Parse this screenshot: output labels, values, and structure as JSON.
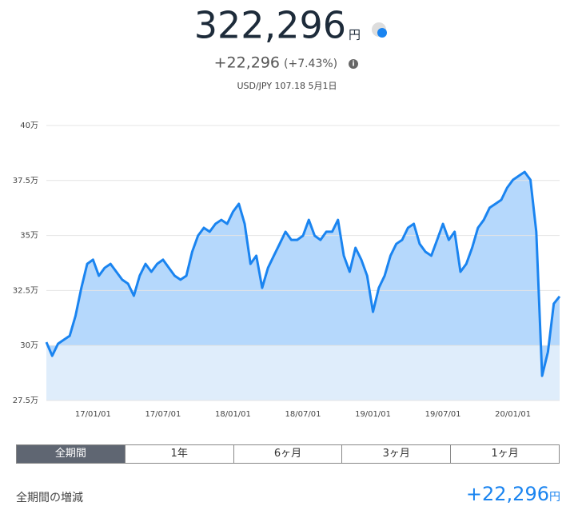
{
  "header": {
    "amount": "322,296",
    "unit": "円",
    "change": "+22,296",
    "change_pct": "(+7.43%)",
    "info": "i",
    "rate": "USD/JPY 107.18 5月1日"
  },
  "chart_data": {
    "type": "area",
    "categories": [
      null,
      null,
      null,
      null,
      null,
      null,
      null,
      null,
      "17/01/01",
      null,
      null,
      null,
      null,
      null,
      null,
      null,
      null,
      null,
      null,
      null,
      "17/07/01",
      null,
      null,
      null,
      null,
      null,
      null,
      null,
      null,
      null,
      null,
      null,
      "18/01/01",
      null,
      null,
      null,
      null,
      null,
      null,
      null,
      null,
      null,
      null,
      null,
      "18/07/01",
      null,
      null,
      null,
      null,
      null,
      null,
      null,
      null,
      null,
      null,
      null,
      "19/01/01",
      null,
      null,
      null,
      null,
      null,
      null,
      null,
      null,
      null,
      null,
      null,
      "19/07/01",
      null,
      null,
      null,
      null,
      null,
      null,
      null,
      null,
      null,
      null,
      null,
      "20/01/01",
      null,
      null,
      null,
      null,
      null,
      null,
      null,
      null
    ],
    "values": [
      301500,
      295300,
      300800,
      302600,
      304400,
      313500,
      326200,
      337100,
      339000,
      331700,
      335300,
      337100,
      333500,
      329900,
      328100,
      322600,
      331700,
      337100,
      333500,
      337100,
      339000,
      335300,
      331700,
      329900,
      331700,
      342600,
      349900,
      353500,
      351700,
      355300,
      357100,
      355300,
      360800,
      364400,
      355300,
      337100,
      340800,
      326200,
      335300,
      340800,
      346200,
      351700,
      348000,
      348000,
      349900,
      357100,
      349900,
      348000,
      351700,
      351700,
      357100,
      340800,
      333500,
      344400,
      339000,
      331700,
      315300,
      326200,
      331700,
      340800,
      346200,
      348000,
      353500,
      355300,
      346200,
      342600,
      340800,
      348000,
      355300,
      348000,
      351700,
      333500,
      337100,
      344400,
      353500,
      357100,
      362600,
      364400,
      366200,
      371700,
      375300,
      377100,
      378900,
      375300,
      351700,
      286200,
      297100,
      319000,
      322296
    ],
    "color": "#1a84f0",
    "baseline": 300000,
    "ylim": [
      275000,
      400000
    ],
    "yticks": [
      {
        "value": 275000,
        "label": "27.5万"
      },
      {
        "value": 300000,
        "label": "30万"
      },
      {
        "value": 325000,
        "label": "32.5万"
      },
      {
        "value": 350000,
        "label": "35万"
      },
      {
        "value": 375000,
        "label": "37.5万"
      },
      {
        "value": 400000,
        "label": "40万"
      }
    ],
    "grid": true
  },
  "tabs": [
    "全期間",
    "1年",
    "6ヶ月",
    "3ヶ月",
    "1ヶ月"
  ],
  "active_tab": 0,
  "footer": {
    "label": "全期間の増減",
    "value": "+22,296",
    "unit": "円"
  }
}
